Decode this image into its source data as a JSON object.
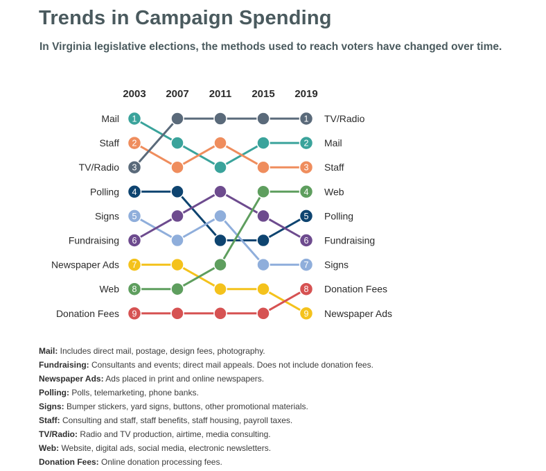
{
  "header": {
    "title": "Trends in Campaign Spending",
    "subtitle": "In Virginia legislative elections, the methods used to reach voters have changed over time."
  },
  "chart_data": {
    "type": "bump",
    "title": "Trends in Campaign Spending",
    "subtitle": "In Virginia legislative elections, the methods used to reach voters have changed over time.",
    "x": [
      "2003",
      "2007",
      "2011",
      "2015",
      "2019"
    ],
    "rank_range": [
      1,
      9
    ],
    "series": [
      {
        "name": "Mail",
        "color": "#3aa39b",
        "ranks": [
          1,
          2,
          3,
          2,
          2
        ]
      },
      {
        "name": "Staff",
        "color": "#ef8d5d",
        "ranks": [
          2,
          3,
          2,
          3,
          3
        ]
      },
      {
        "name": "TV/Radio",
        "color": "#5a6a7a",
        "ranks": [
          3,
          1,
          1,
          1,
          1
        ]
      },
      {
        "name": "Polling",
        "color": "#0e4470",
        "ranks": [
          4,
          4,
          6,
          6,
          5
        ]
      },
      {
        "name": "Signs",
        "color": "#8faedb",
        "ranks": [
          5,
          6,
          5,
          7,
          7
        ]
      },
      {
        "name": "Fundraising",
        "color": "#6d4b8e",
        "ranks": [
          6,
          5,
          4,
          5,
          6
        ]
      },
      {
        "name": "Newspaper Ads",
        "color": "#f4c21c",
        "ranks": [
          7,
          7,
          8,
          8,
          9
        ]
      },
      {
        "name": "Web",
        "color": "#5e9e5e",
        "ranks": [
          8,
          8,
          7,
          4,
          4
        ]
      },
      {
        "name": "Donation Fees",
        "color": "#d65252",
        "ranks": [
          9,
          9,
          9,
          9,
          8
        ]
      }
    ]
  },
  "notes": [
    {
      "term": "Mail:",
      "text": " Includes direct mail, postage, design fees, photography."
    },
    {
      "term": "Fundraising:",
      "text": " Consultants and events; direct mail appeals. Does not include donation fees."
    },
    {
      "term": "Newspaper Ads:",
      "text": " Ads placed in print and online newspapers."
    },
    {
      "term": "Polling:",
      "text": " Polls, telemarketing, phone banks."
    },
    {
      "term": "Signs:",
      "text": " Bumper stickers, yard signs, buttons, other promotional materials."
    },
    {
      "term": "Staff:",
      "text": " Consulting and staff, staff benefits, staff housing, payroll taxes."
    },
    {
      "term": "TV/Radio:",
      "text": " Radio and TV production, airtime, media consulting."
    },
    {
      "term": "Web:",
      "text": " Website, digital ads, social media, electronic newsletters."
    },
    {
      "term": "Donation Fees:",
      "text": " Online donation processing fees."
    }
  ]
}
